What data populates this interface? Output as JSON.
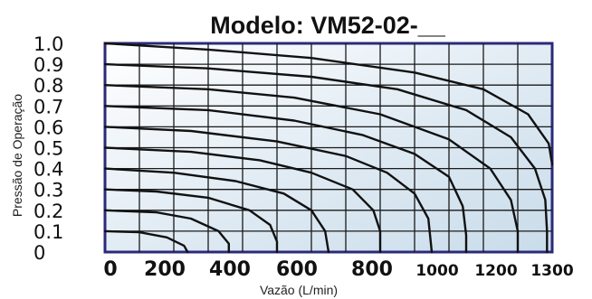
{
  "chart_data": {
    "type": "line",
    "title": "Modelo: VM52-02-__",
    "xlabel": "Vazão (L/min)",
    "ylabel": "Pressão de Operação",
    "xlim": [
      0,
      1300
    ],
    "ylim": [
      0,
      1.0
    ],
    "x_ticks": [
      "0",
      "200",
      "400",
      "600",
      "800",
      "1000",
      "1200",
      "1300"
    ],
    "y_ticks": [
      "0",
      "0.1",
      "0.2",
      "0.3",
      "0.4",
      "0.5",
      "0.6",
      "0.7",
      "0.8",
      "0.9",
      "1.0"
    ],
    "grid": true,
    "series": [
      {
        "values": [
          [
            0,
            1.0
          ],
          [
            300,
            0.97
          ],
          [
            600,
            0.93
          ],
          [
            900,
            0.86
          ],
          [
            1100,
            0.78
          ],
          [
            1230,
            0.66
          ],
          [
            1290,
            0.52
          ],
          [
            1300,
            0.42
          ]
        ]
      },
      {
        "values": [
          [
            0,
            0.9
          ],
          [
            300,
            0.88
          ],
          [
            600,
            0.84
          ],
          [
            850,
            0.78
          ],
          [
            1050,
            0.68
          ],
          [
            1180,
            0.55
          ],
          [
            1250,
            0.4
          ],
          [
            1280,
            0.25
          ],
          [
            1285,
            0.1
          ],
          [
            1285,
            0.0
          ]
        ]
      },
      {
        "values": [
          [
            0,
            0.8
          ],
          [
            300,
            0.78
          ],
          [
            550,
            0.74
          ],
          [
            800,
            0.66
          ],
          [
            1000,
            0.54
          ],
          [
            1120,
            0.4
          ],
          [
            1180,
            0.25
          ],
          [
            1200,
            0.1
          ],
          [
            1200,
            0.0
          ]
        ]
      },
      {
        "values": [
          [
            0,
            0.7
          ],
          [
            300,
            0.68
          ],
          [
            550,
            0.63
          ],
          [
            750,
            0.56
          ],
          [
            900,
            0.47
          ],
          [
            1000,
            0.36
          ],
          [
            1040,
            0.22
          ],
          [
            1050,
            0.08
          ],
          [
            1050,
            0.0
          ]
        ]
      },
      {
        "values": [
          [
            0,
            0.6
          ],
          [
            250,
            0.58
          ],
          [
            500,
            0.53
          ],
          [
            700,
            0.46
          ],
          [
            820,
            0.38
          ],
          [
            900,
            0.28
          ],
          [
            940,
            0.16
          ],
          [
            950,
            0.0
          ]
        ]
      },
      {
        "values": [
          [
            0,
            0.5
          ],
          [
            250,
            0.48
          ],
          [
            450,
            0.44
          ],
          [
            600,
            0.38
          ],
          [
            720,
            0.3
          ],
          [
            780,
            0.2
          ],
          [
            800,
            0.1
          ],
          [
            800,
            0.0
          ]
        ]
      },
      {
        "values": [
          [
            0,
            0.4
          ],
          [
            200,
            0.38
          ],
          [
            380,
            0.34
          ],
          [
            520,
            0.28
          ],
          [
            600,
            0.2
          ],
          [
            640,
            0.1
          ],
          [
            650,
            0.0
          ]
        ]
      },
      {
        "values": [
          [
            0,
            0.3
          ],
          [
            150,
            0.29
          ],
          [
            300,
            0.26
          ],
          [
            420,
            0.2
          ],
          [
            480,
            0.13
          ],
          [
            500,
            0.05
          ],
          [
            500,
            0.0
          ]
        ]
      },
      {
        "values": [
          [
            0,
            0.2
          ],
          [
            150,
            0.19
          ],
          [
            250,
            0.16
          ],
          [
            330,
            0.1
          ],
          [
            360,
            0.04
          ],
          [
            360,
            0.0
          ]
        ]
      },
      {
        "values": [
          [
            0,
            0.1
          ],
          [
            100,
            0.095
          ],
          [
            180,
            0.07
          ],
          [
            230,
            0.03
          ],
          [
            240,
            0.0
          ]
        ]
      }
    ]
  }
}
